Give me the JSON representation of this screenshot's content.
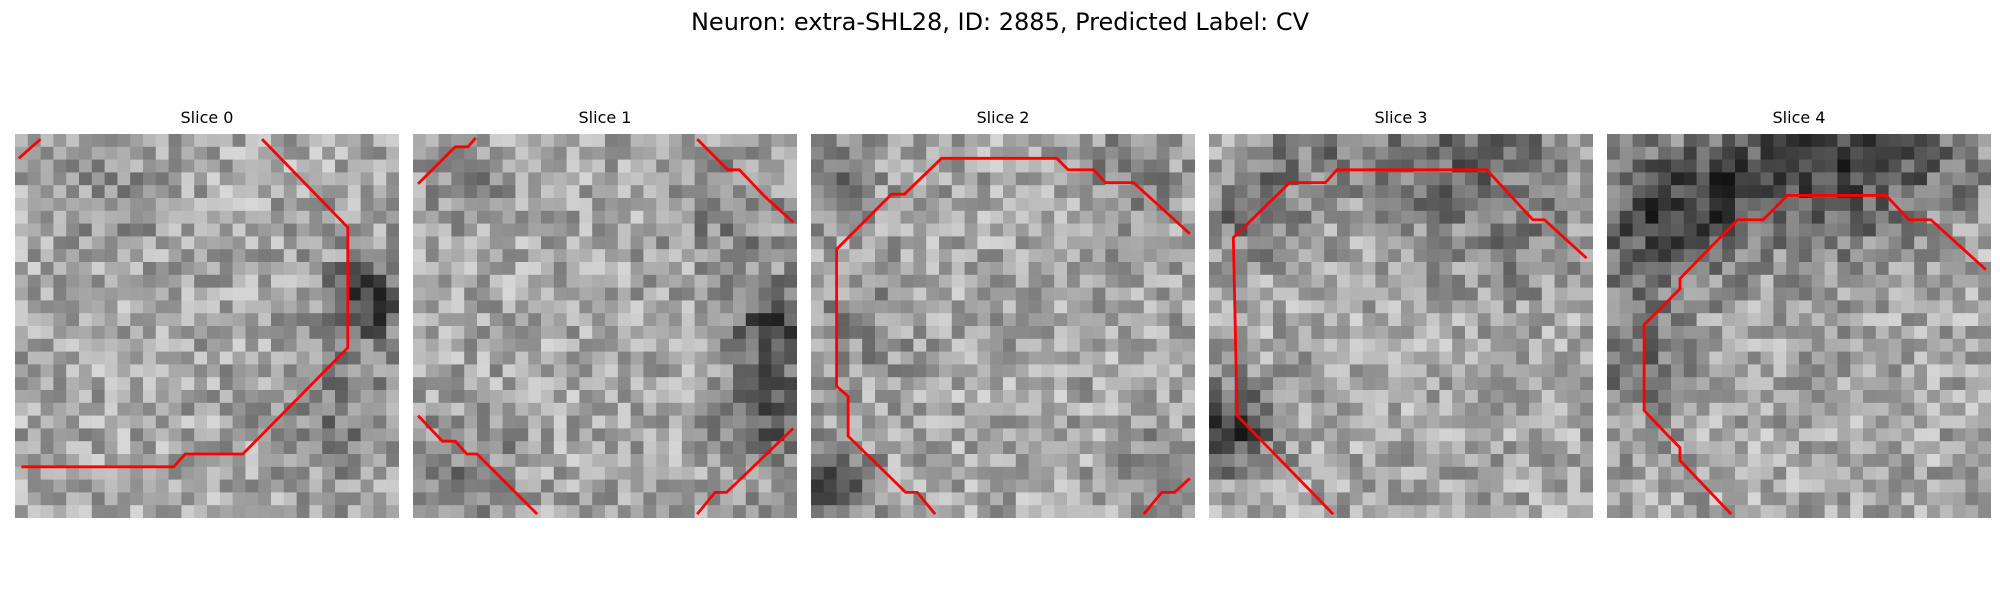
{
  "figure": {
    "title": "Neuron: extra-SHL28, ID: 2885, Predicted Label: CV"
  },
  "panels": [
    {
      "title": "Slice 0"
    },
    {
      "title": "Slice 1"
    },
    {
      "title": "Slice 2"
    },
    {
      "title": "Slice 3"
    },
    {
      "title": "Slice 4"
    }
  ],
  "colors": {
    "contour": "#ff0000",
    "background": "#ffffff",
    "image_colormap": "grayscale"
  }
}
